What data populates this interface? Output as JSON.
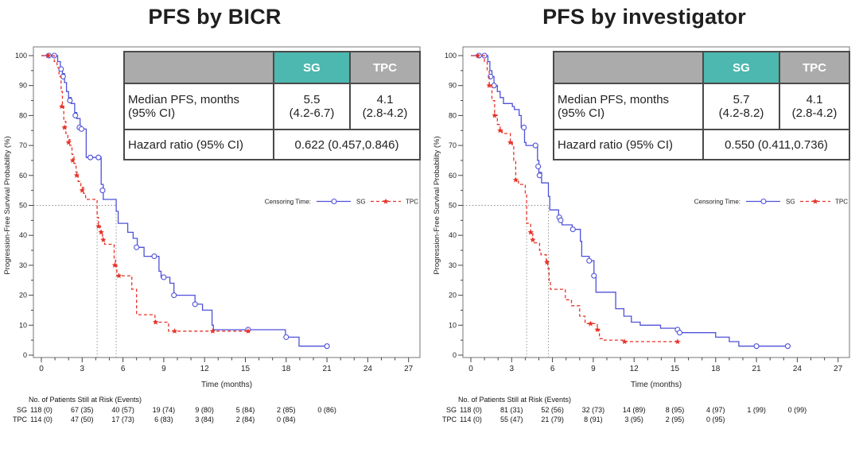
{
  "colors": {
    "sg": "#4f51d8",
    "tpc": "#e63329",
    "teal_header": "#4DB8B0",
    "gray_header": "#ABABAB",
    "dotted_line": "#8a8a8a",
    "plot_border": "#8c8c8c",
    "axis_text": "#222222"
  },
  "chart_data": [
    {
      "type": "line",
      "subtype": "kaplan-meier-step",
      "title": "PFS by BICR",
      "xlabel": "Time (months)",
      "ylabel": "Progression-Free Survival Probability (%)",
      "xlim": [
        0,
        28
      ],
      "ylim": [
        0,
        100
      ],
      "x_ticks": [
        0,
        3,
        6,
        9,
        12,
        15,
        18,
        21,
        24,
        27
      ],
      "y_ticks": [
        0,
        10,
        20,
        30,
        40,
        50,
        60,
        70,
        80,
        90,
        100
      ],
      "grid": false,
      "legend": {
        "label": "Censoring Time:",
        "position": "right-middle-inside"
      },
      "reference_lines": {
        "horizontal_at": 50,
        "verticals_at_medians": true
      },
      "series": [
        {
          "name": "SG",
          "color_key": "sg",
          "line_style": "solid",
          "marker": "open-circle",
          "median_months": 5.5,
          "steps": [
            [
              0,
              100
            ],
            [
              1.2,
              98
            ],
            [
              1.4,
              96
            ],
            [
              1.55,
              94
            ],
            [
              1.7,
              91
            ],
            [
              1.85,
              88
            ],
            [
              2.0,
              86
            ],
            [
              2.2,
              84
            ],
            [
              2.45,
              81
            ],
            [
              2.6,
              79
            ],
            [
              2.85,
              75.5
            ],
            [
              3.3,
              66
            ],
            [
              4.4,
              57
            ],
            [
              4.55,
              52
            ],
            [
              5.5,
              48
            ],
            [
              5.65,
              44
            ],
            [
              6.35,
              41
            ],
            [
              6.75,
              39
            ],
            [
              7.05,
              36
            ],
            [
              7.55,
              33
            ],
            [
              8.65,
              28
            ],
            [
              8.8,
              26
            ],
            [
              9.45,
              24
            ],
            [
              9.75,
              20
            ],
            [
              11.3,
              17
            ],
            [
              11.85,
              15
            ],
            [
              12.55,
              10
            ],
            [
              12.65,
              8.5
            ],
            [
              17.95,
              6
            ],
            [
              18.95,
              3
            ],
            [
              21,
              3
            ]
          ],
          "censor_marks": [
            [
              0.55,
              100
            ],
            [
              0.95,
              100
            ],
            [
              1.45,
              95.5
            ],
            [
              1.6,
              93
            ],
            [
              2.1,
              85
            ],
            [
              2.5,
              80
            ],
            [
              2.8,
              76
            ],
            [
              2.95,
              75.5
            ],
            [
              3.6,
              66
            ],
            [
              4.2,
              66
            ],
            [
              4.5,
              55
            ],
            [
              7.0,
              36
            ],
            [
              8.3,
              33
            ],
            [
              9.0,
              26
            ],
            [
              9.75,
              20
            ],
            [
              11.3,
              17
            ],
            [
              15.2,
              8.5
            ],
            [
              18.0,
              6
            ],
            [
              21,
              3
            ]
          ]
        },
        {
          "name": "TPC",
          "color_key": "tpc",
          "line_style": "dashed",
          "marker": "filled-star",
          "median_months": 4.1,
          "steps": [
            [
              0,
              100
            ],
            [
              0.95,
              98
            ],
            [
              1.15,
              96
            ],
            [
              1.3,
              93
            ],
            [
              1.45,
              88
            ],
            [
              1.55,
              83
            ],
            [
              1.65,
              78
            ],
            [
              1.8,
              74
            ],
            [
              1.95,
              72
            ],
            [
              2.1,
              70
            ],
            [
              2.25,
              67
            ],
            [
              2.4,
              64
            ],
            [
              2.55,
              61
            ],
            [
              2.7,
              58
            ],
            [
              2.9,
              56
            ],
            [
              3.1,
              54
            ],
            [
              3.25,
              52
            ],
            [
              4.1,
              46
            ],
            [
              4.2,
              43
            ],
            [
              4.35,
              41
            ],
            [
              4.5,
              38.5
            ],
            [
              4.65,
              37
            ],
            [
              5.35,
              32
            ],
            [
              5.45,
              30
            ],
            [
              5.55,
              26.5
            ],
            [
              6.65,
              22
            ],
            [
              7.0,
              13.5
            ],
            [
              8.35,
              11
            ],
            [
              9.35,
              8
            ],
            [
              15.35,
              8
            ]
          ],
          "censor_marks": [
            [
              0.5,
              100
            ],
            [
              1.5,
              83
            ],
            [
              1.7,
              76
            ],
            [
              2.0,
              71
            ],
            [
              2.3,
              65
            ],
            [
              2.6,
              60
            ],
            [
              3.0,
              55
            ],
            [
              4.2,
              43
            ],
            [
              4.4,
              41
            ],
            [
              4.55,
              38.5
            ],
            [
              5.4,
              30
            ],
            [
              5.7,
              26.5
            ],
            [
              8.4,
              11
            ],
            [
              9.8,
              8
            ],
            [
              12.6,
              8
            ],
            [
              15.2,
              8
            ]
          ]
        }
      ],
      "stats_table": {
        "col_headers": [
          "SG",
          "TPC"
        ],
        "median_label": [
          "Median PFS, months",
          "(95% CI)"
        ],
        "sg_median": [
          "5.5",
          "(4.2-6.7)"
        ],
        "tpc_median": [
          "4.1",
          "(2.8-4.2)"
        ],
        "hr_label": "Hazard ratio (95% CI)",
        "hr_value": "0.622 (0.457,0.846)"
      },
      "risk_table": {
        "header": "No. of Patients Still at Risk (Events)",
        "time_points": [
          0,
          3,
          6,
          9,
          12,
          15,
          18,
          21
        ],
        "rows": [
          {
            "label": "SG",
            "values": [
              "118 (0)",
              "67 (35)",
              "40 (57)",
              "19 (74)",
              "9 (80)",
              "5 (84)",
              "2 (85)",
              "0 (86)"
            ]
          },
          {
            "label": "TPC",
            "values": [
              "114 (0)",
              "47 (50)",
              "17 (73)",
              "6 (83)",
              "3 (84)",
              "2 (84)",
              "0 (84)"
            ]
          }
        ]
      }
    },
    {
      "type": "line",
      "subtype": "kaplan-meier-step",
      "title": "PFS by investigator",
      "xlabel": "Time (months)",
      "ylabel": "Progression-Free Survival Probability (%)",
      "xlim": [
        0,
        28
      ],
      "ylim": [
        0,
        100
      ],
      "x_ticks": [
        0,
        3,
        6,
        9,
        12,
        15,
        18,
        21,
        24,
        27
      ],
      "y_ticks": [
        0,
        10,
        20,
        30,
        40,
        50,
        60,
        70,
        80,
        90,
        100
      ],
      "grid": false,
      "legend": {
        "label": "Censoring Time:",
        "position": "right-middle-inside"
      },
      "reference_lines": {
        "horizontal_at": 50,
        "verticals_at_medians": true
      },
      "series": [
        {
          "name": "SG",
          "color_key": "sg",
          "line_style": "solid",
          "marker": "open-circle",
          "median_months": 5.7,
          "steps": [
            [
              0,
              100
            ],
            [
              1.25,
              98
            ],
            [
              1.4,
              95
            ],
            [
              1.55,
              93
            ],
            [
              1.7,
              90
            ],
            [
              1.95,
              88
            ],
            [
              2.15,
              86
            ],
            [
              2.4,
              84
            ],
            [
              3.05,
              83
            ],
            [
              3.2,
              82
            ],
            [
              3.55,
              80
            ],
            [
              3.7,
              76
            ],
            [
              3.95,
              71
            ],
            [
              4.05,
              70
            ],
            [
              4.9,
              65
            ],
            [
              5.0,
              61
            ],
            [
              5.2,
              57.5
            ],
            [
              5.7,
              53
            ],
            [
              5.8,
              48.5
            ],
            [
              6.45,
              46
            ],
            [
              6.6,
              45
            ],
            [
              6.7,
              43.5
            ],
            [
              7.45,
              42
            ],
            [
              8.05,
              38
            ],
            [
              8.15,
              33
            ],
            [
              8.7,
              31.5
            ],
            [
              9.05,
              26.5
            ],
            [
              9.2,
              21
            ],
            [
              10.65,
              15.5
            ],
            [
              11.25,
              13
            ],
            [
              11.8,
              11
            ],
            [
              12.45,
              10
            ],
            [
              13.95,
              9
            ],
            [
              15.15,
              8.5
            ],
            [
              15.3,
              7.5
            ],
            [
              18.0,
              6
            ],
            [
              19.0,
              4.5
            ],
            [
              19.7,
              3
            ],
            [
              23.3,
              3
            ]
          ],
          "censor_marks": [
            [
              0.6,
              100
            ],
            [
              1.0,
              100
            ],
            [
              1.45,
              93
            ],
            [
              1.7,
              90
            ],
            [
              3.9,
              76
            ],
            [
              4.75,
              70
            ],
            [
              4.95,
              63
            ],
            [
              5.05,
              60
            ],
            [
              6.5,
              46
            ],
            [
              6.6,
              45
            ],
            [
              7.5,
              42
            ],
            [
              8.7,
              31.5
            ],
            [
              9.05,
              26.5
            ],
            [
              15.2,
              8.5
            ],
            [
              15.35,
              7.5
            ],
            [
              21,
              3
            ],
            [
              23.3,
              3
            ]
          ]
        },
        {
          "name": "TPC",
          "color_key": "tpc",
          "line_style": "dashed",
          "marker": "filled-star",
          "median_months": 4.1,
          "steps": [
            [
              0,
              100
            ],
            [
              1.0,
              98
            ],
            [
              1.2,
              95
            ],
            [
              1.35,
              90
            ],
            [
              1.55,
              85
            ],
            [
              1.75,
              80
            ],
            [
              1.95,
              77
            ],
            [
              2.15,
              75
            ],
            [
              2.3,
              74
            ],
            [
              2.9,
              71
            ],
            [
              3.05,
              70
            ],
            [
              3.15,
              65
            ],
            [
              3.3,
              58.5
            ],
            [
              3.5,
              57
            ],
            [
              4.0,
              53.5
            ],
            [
              4.1,
              44
            ],
            [
              4.4,
              41
            ],
            [
              4.55,
              38.5
            ],
            [
              4.65,
              37.5
            ],
            [
              5.05,
              35
            ],
            [
              5.15,
              33.5
            ],
            [
              5.55,
              31
            ],
            [
              5.65,
              29
            ],
            [
              5.75,
              25
            ],
            [
              5.85,
              22
            ],
            [
              6.95,
              18.5
            ],
            [
              7.4,
              16.5
            ],
            [
              8.0,
              13
            ],
            [
              8.4,
              10.5
            ],
            [
              9.3,
              8.5
            ],
            [
              9.45,
              5.5
            ],
            [
              9.8,
              5
            ],
            [
              11.25,
              4.5
            ],
            [
              15.4,
              4.5
            ]
          ],
          "censor_marks": [
            [
              0.5,
              100
            ],
            [
              1.35,
              90
            ],
            [
              1.75,
              80
            ],
            [
              2.15,
              75
            ],
            [
              2.9,
              71
            ],
            [
              3.3,
              58.5
            ],
            [
              4.4,
              41
            ],
            [
              4.55,
              38.5
            ],
            [
              5.6,
              31
            ],
            [
              8.8,
              10.5
            ],
            [
              9.3,
              8.5
            ],
            [
              11.3,
              4.5
            ],
            [
              15.2,
              4.5
            ]
          ]
        }
      ],
      "stats_table": {
        "col_headers": [
          "SG",
          "TPC"
        ],
        "median_label": [
          "Median PFS, months",
          "(95% CI)"
        ],
        "sg_median": [
          "5.7",
          "(4.2-8.2)"
        ],
        "tpc_median": [
          "4.1",
          "(2.8-4.2)"
        ],
        "hr_label": "Hazard ratio (95% CI)",
        "hr_value": "0.550 (0.411,0.736)"
      },
      "risk_table": {
        "header": "No. of Patients Still at Risk (Events)",
        "time_points": [
          0,
          3,
          6,
          9,
          12,
          15,
          18,
          21,
          24
        ],
        "rows": [
          {
            "label": "SG",
            "values": [
              "118 (0)",
              "81 (31)",
              "52 (56)",
              "32 (73)",
              "14 (89)",
              "8 (95)",
              "4 (97)",
              "1 (99)",
              "0 (99)"
            ]
          },
          {
            "label": "TPC",
            "values": [
              "114 (0)",
              "55 (47)",
              "21 (79)",
              "8 (91)",
              "3 (95)",
              "2 (95)",
              "0 (95)"
            ]
          }
        ]
      }
    }
  ]
}
